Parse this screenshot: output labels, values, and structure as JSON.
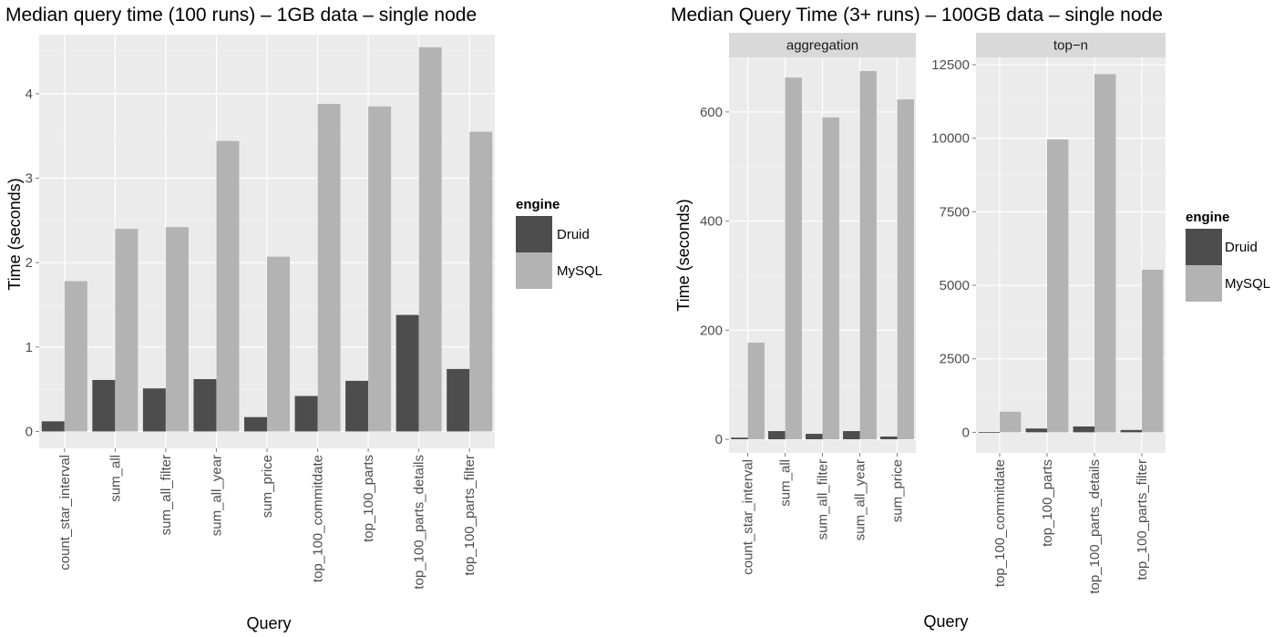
{
  "chart_data": [
    {
      "type": "bar",
      "title": "Median query time (100 runs) – 1GB data – single node",
      "xlabel": "Query",
      "ylabel": "Time (seconds)",
      "ylim": [
        -0.2,
        4.7
      ],
      "yticks": [
        "0",
        "1",
        "2",
        "3",
        "4"
      ],
      "grid": true,
      "legend": {
        "title": "engine",
        "position": "right",
        "items": [
          "Druid",
          "MySQL"
        ]
      },
      "categories": [
        "count_star_interval",
        "sum_all",
        "sum_all_filter",
        "sum_all_year",
        "sum_price",
        "top_100_commitdate",
        "top_100_parts",
        "top_100_parts_details",
        "top_100_parts_filter"
      ],
      "series": [
        {
          "name": "Druid",
          "color": "#4d4d4d",
          "values": [
            0.12,
            0.61,
            0.51,
            0.62,
            0.17,
            0.42,
            0.6,
            1.38,
            0.74
          ]
        },
        {
          "name": "MySQL",
          "color": "#b3b3b3",
          "values": [
            1.78,
            2.4,
            2.42,
            3.44,
            2.07,
            3.88,
            3.85,
            4.55,
            3.55
          ]
        }
      ]
    },
    {
      "type": "bar",
      "title": "Median Query Time (3+ runs) – 100GB data – single node",
      "xlabel": "Query",
      "ylabel": "Time (seconds)",
      "legend": {
        "title": "engine",
        "position": "right",
        "items": [
          "Druid",
          "MySQL"
        ]
      },
      "facets": [
        {
          "strip": "aggregation",
          "ylim": [
            -25,
            700
          ],
          "yticks": [
            "0",
            "200",
            "400",
            "600"
          ],
          "categories": [
            "count_star_interval",
            "sum_all",
            "sum_all_filter",
            "sum_all_year",
            "sum_price"
          ],
          "series": [
            {
              "name": "Druid",
              "color": "#4d4d4d",
              "values": [
                3,
                15,
                10,
                15,
                5
              ]
            },
            {
              "name": "MySQL",
              "color": "#b3b3b3",
              "values": [
                177,
                663,
                590,
                675,
                623
              ]
            }
          ]
        },
        {
          "strip": "top−n",
          "ylim": [
            -700,
            12750
          ],
          "yticks": [
            "0",
            "2500",
            "5000",
            "7500",
            "10000",
            "12500"
          ],
          "categories": [
            "top_100_commitdate",
            "top_100_parts",
            "top_100_parts_details",
            "top_100_parts_filter"
          ],
          "series": [
            {
              "name": "Druid",
              "color": "#4d4d4d",
              "values": [
                10,
                130,
                200,
                80
              ]
            },
            {
              "name": "MySQL",
              "color": "#b3b3b3",
              "values": [
                700,
                9960,
                12180,
                5530
              ]
            }
          ]
        }
      ]
    }
  ]
}
